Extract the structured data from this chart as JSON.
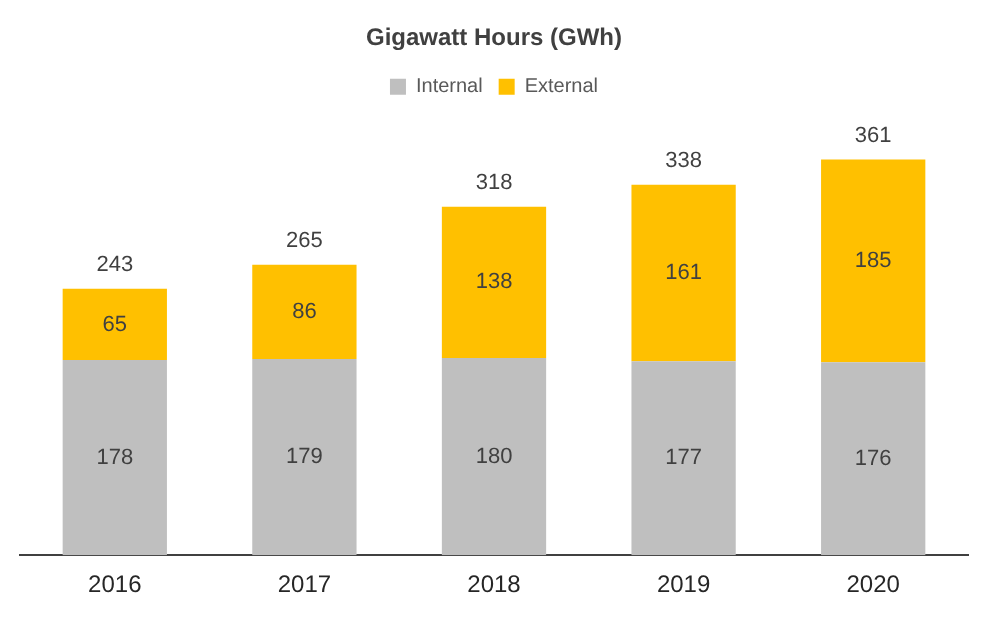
{
  "chart_data": {
    "type": "bar",
    "title": "Gigawatt Hours (GWh)",
    "stacked": true,
    "legend": "top",
    "data_labels": true,
    "categories": [
      "2016",
      "2017",
      "2018",
      "2019",
      "2020"
    ],
    "series": [
      {
        "name": "Internal",
        "color": "#bfbfbf",
        "values": [
          178,
          179,
          180,
          177,
          176
        ]
      },
      {
        "name": "External",
        "color": "#ffc000",
        "values": [
          65,
          86,
          138,
          161,
          185
        ]
      }
    ],
    "totals": [
      "243",
      "265",
      "318",
      "338",
      "361"
    ]
  }
}
